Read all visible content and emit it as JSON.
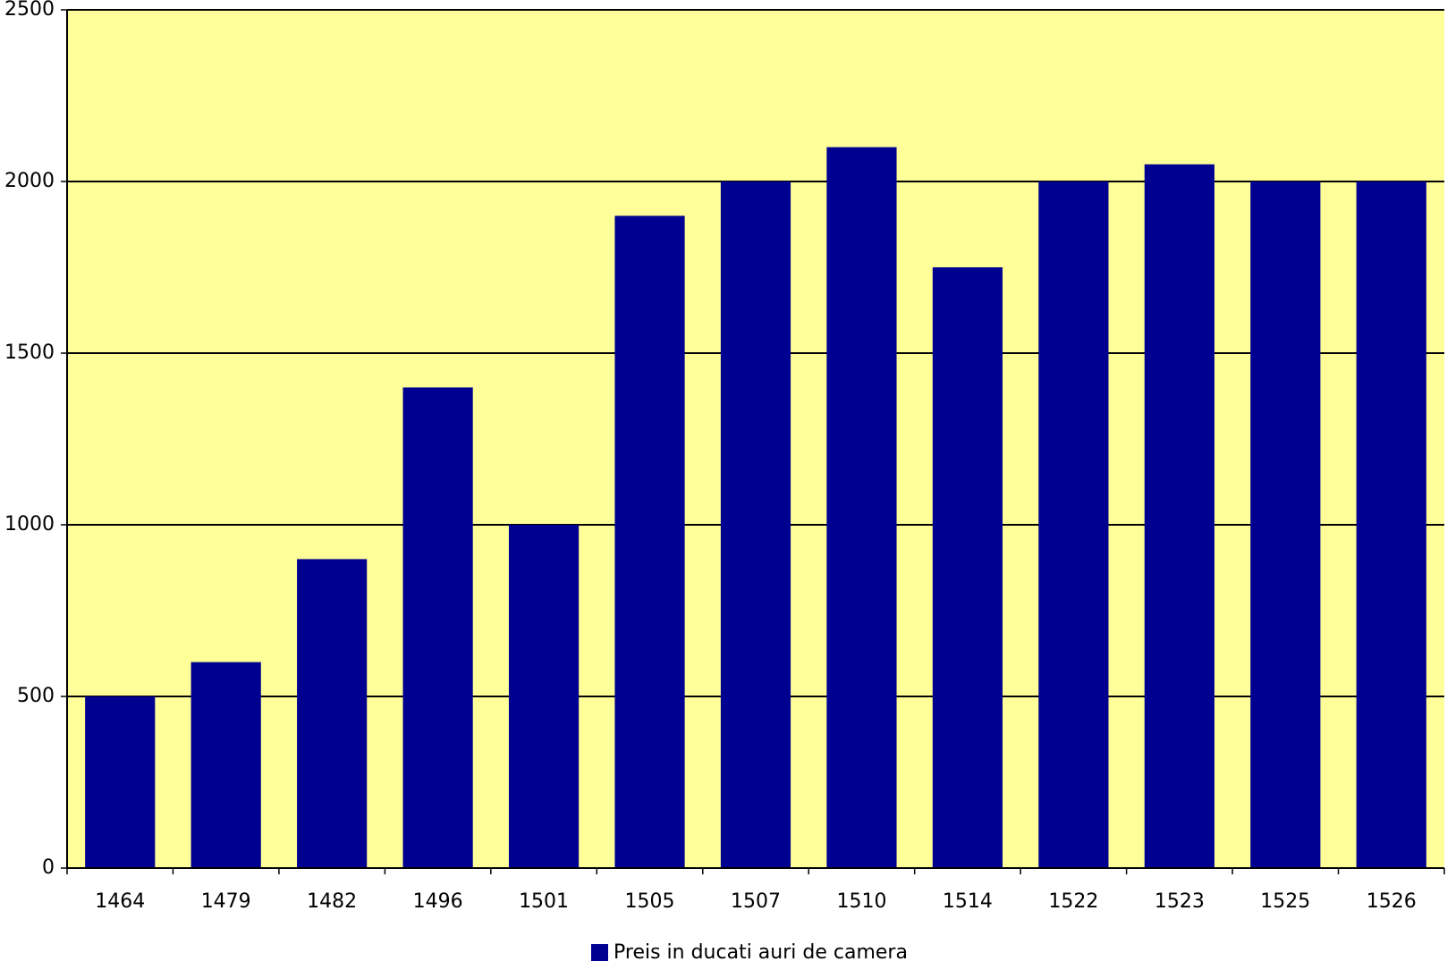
{
  "chart_data": {
    "type": "bar",
    "categories": [
      "1464",
      "1479",
      "1482",
      "1496",
      "1501",
      "1505",
      "1507",
      "1510",
      "1514",
      "1522",
      "1523",
      "1525",
      "1526"
    ],
    "series": [
      {
        "name": "Preis in ducati auri de camera",
        "color": "#000090",
        "values": [
          500,
          600,
          900,
          1400,
          1000,
          1900,
          2000,
          2100,
          1750,
          2000,
          2050,
          2000,
          2000
        ]
      }
    ],
    "ylim": [
      0,
      2500
    ],
    "yticks": [
      0,
      500,
      1000,
      1500,
      2000,
      2500
    ],
    "grid": true,
    "background": "#ffff99",
    "legend": "bottom"
  }
}
